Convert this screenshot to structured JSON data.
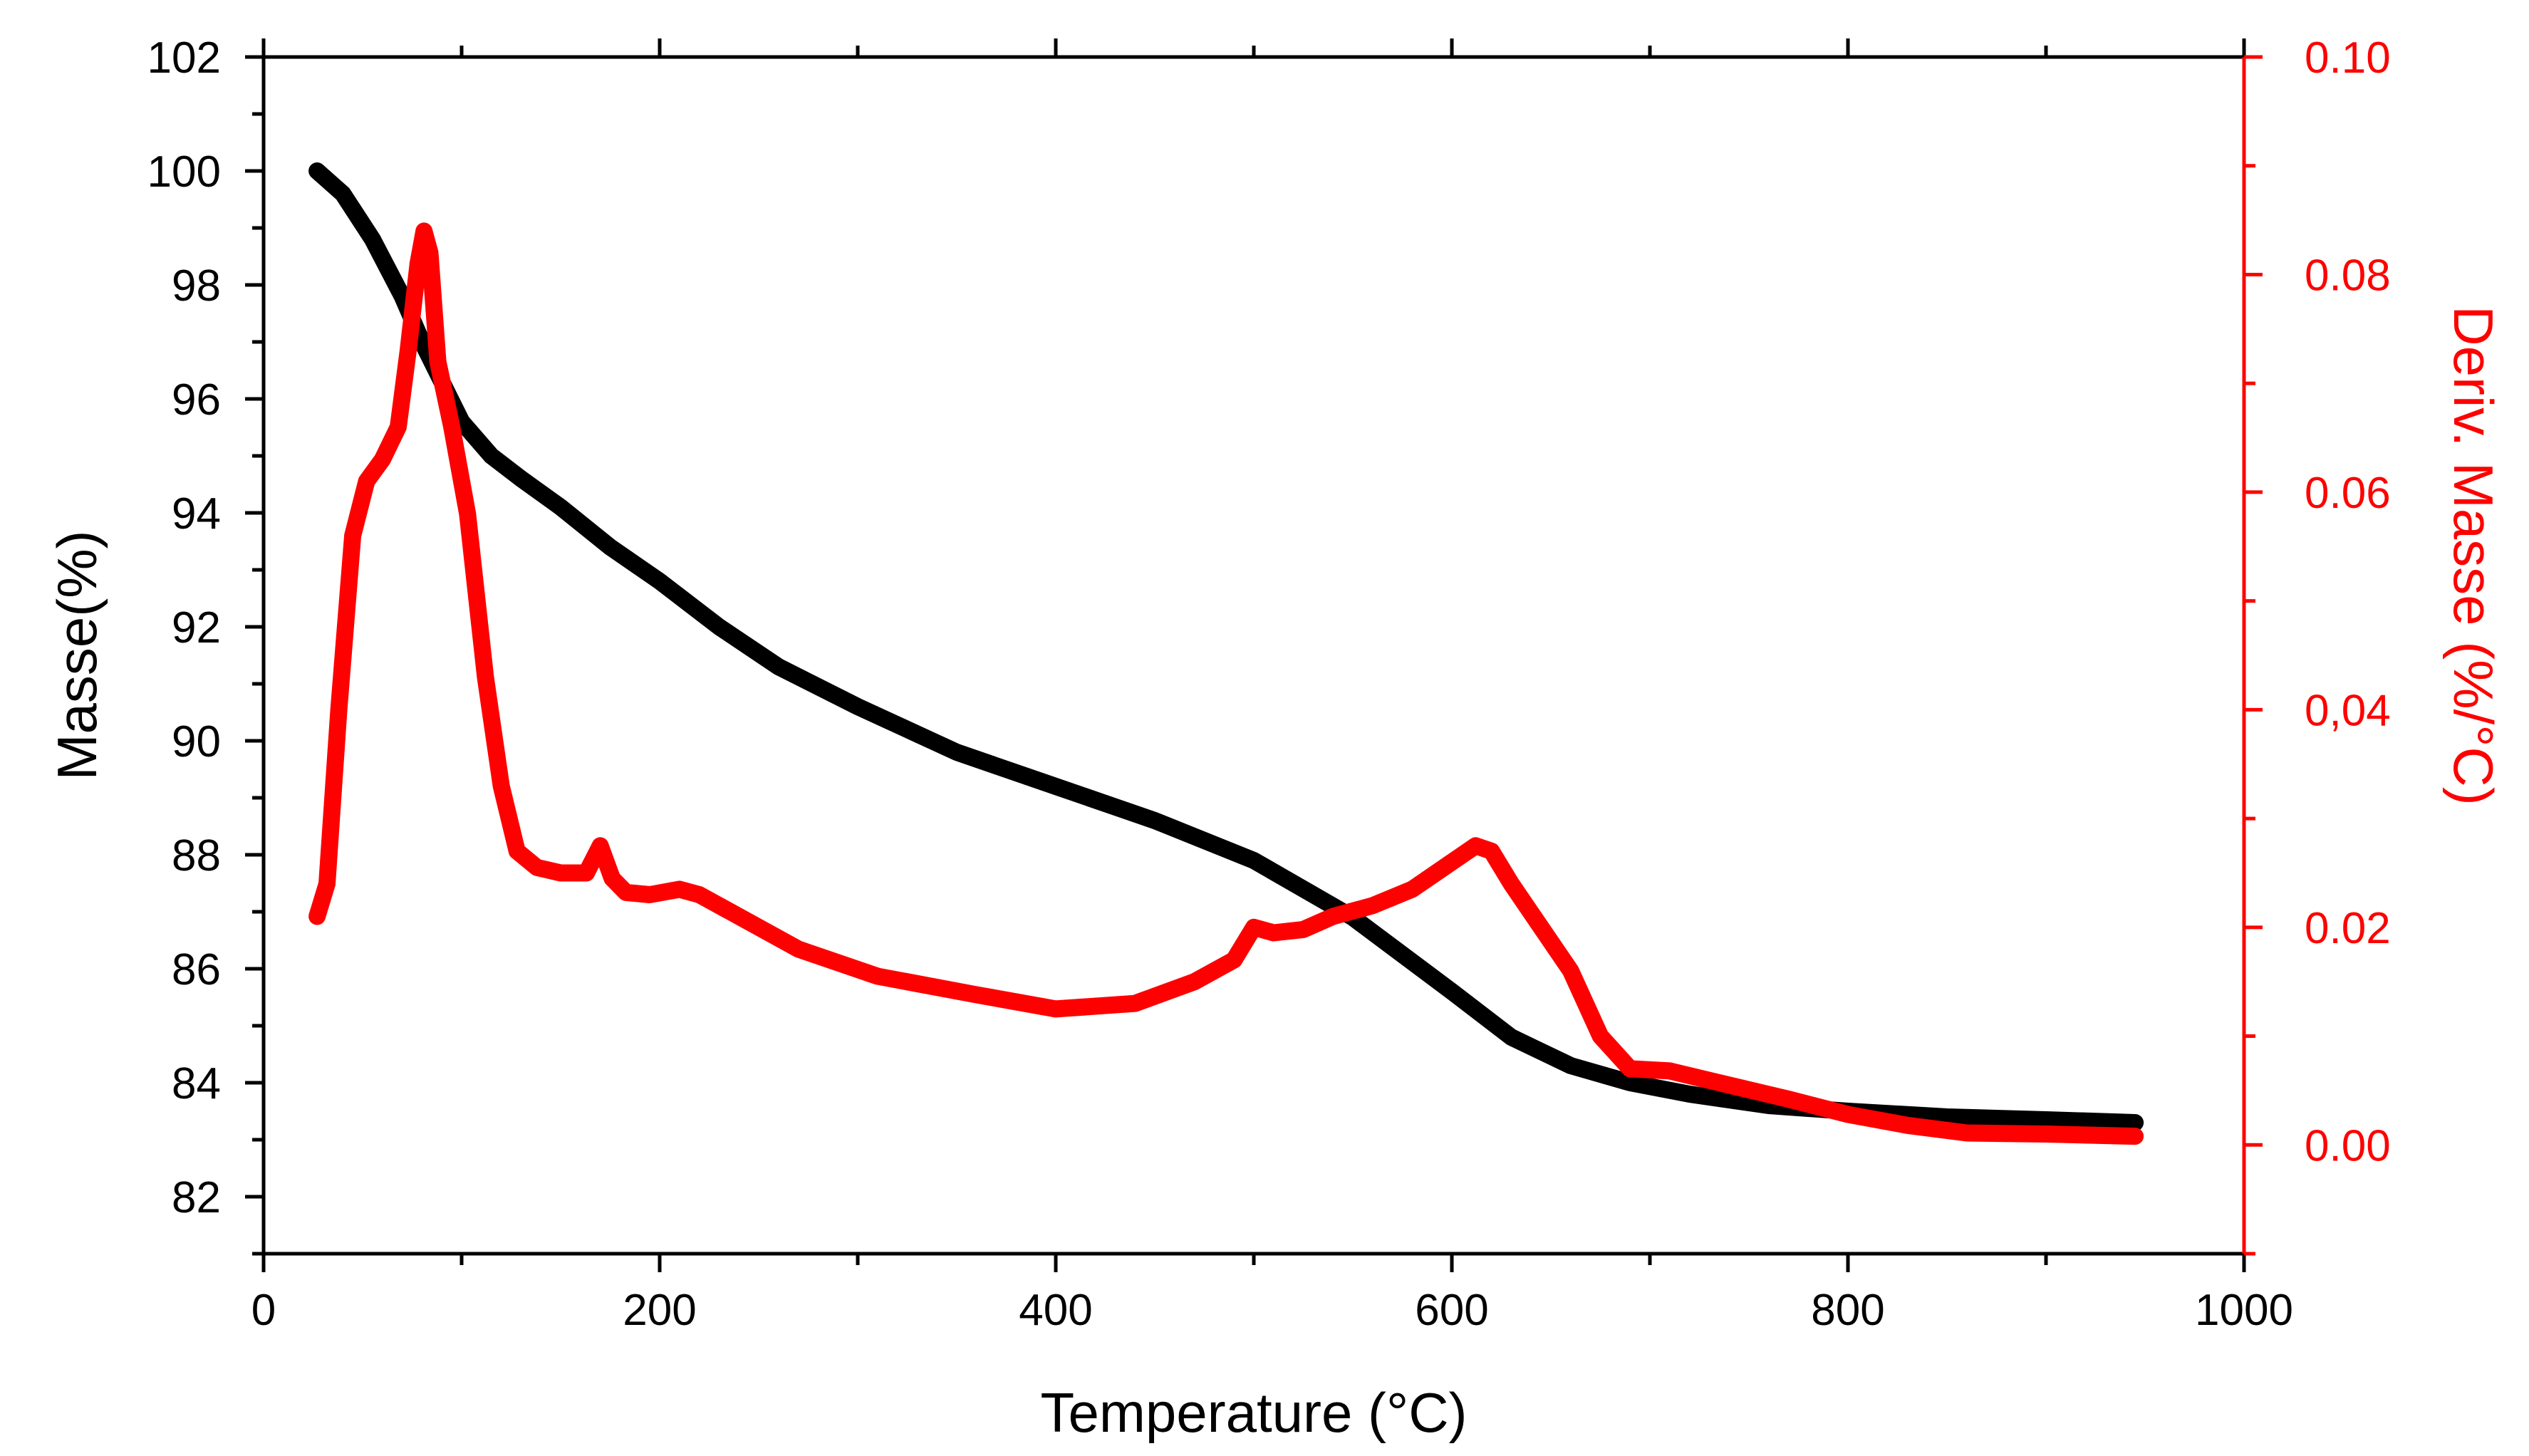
{
  "chart_data": {
    "type": "line",
    "title": "",
    "xlabel": "Temperature (°C)",
    "ylabel": "Masse(%)",
    "y2label": "Deriv. Masse (%/°C)",
    "xlim": [
      0,
      1000
    ],
    "ylim": [
      81,
      102
    ],
    "y2lim": [
      -0.01,
      0.1
    ],
    "x_ticks": [
      {
        "value": 0,
        "label": "0"
      },
      {
        "value": 200,
        "label": "200"
      },
      {
        "value": 400,
        "label": "400"
      },
      {
        "value": 600,
        "label": "600"
      },
      {
        "value": 800,
        "label": "800"
      },
      {
        "value": 1000,
        "label": "1000"
      }
    ],
    "y_ticks": [
      {
        "value": 82,
        "label": "82"
      },
      {
        "value": 84,
        "label": "84"
      },
      {
        "value": 86,
        "label": "86"
      },
      {
        "value": 88,
        "label": "88"
      },
      {
        "value": 90,
        "label": "90"
      },
      {
        "value": 92,
        "label": "92"
      },
      {
        "value": 94,
        "label": "94"
      },
      {
        "value": 96,
        "label": "96"
      },
      {
        "value": 98,
        "label": "98"
      },
      {
        "value": 100,
        "label": "100"
      },
      {
        "value": 102,
        "label": "102"
      }
    ],
    "y2_ticks": [
      {
        "value": 0.0,
        "label": "0.00"
      },
      {
        "value": 0.02,
        "label": "0.02"
      },
      {
        "value": 0.04,
        "label": "0,04"
      },
      {
        "value": 0.06,
        "label": "0.06"
      },
      {
        "value": 0.08,
        "label": "0.08"
      },
      {
        "value": 0.1,
        "label": "0.10"
      }
    ],
    "series": [
      {
        "name": "Masse",
        "axis": "left",
        "color": "#000000",
        "x": [
          27,
          40,
          55,
          70,
          80,
          90,
          100,
          115,
          130,
          150,
          175,
          200,
          230,
          260,
          300,
          350,
          400,
          450,
          500,
          550,
          600,
          630,
          660,
          690,
          720,
          760,
          800,
          850,
          900,
          945
        ],
        "y": [
          100.0,
          99.6,
          98.8,
          97.8,
          97.0,
          96.3,
          95.6,
          95.0,
          94.6,
          94.1,
          93.4,
          92.8,
          92.0,
          91.3,
          90.6,
          89.8,
          89.2,
          88.6,
          87.9,
          86.9,
          85.6,
          84.8,
          84.3,
          84.0,
          83.8,
          83.6,
          83.5,
          83.4,
          83.35,
          83.3
        ]
      },
      {
        "name": "Deriv. Masse",
        "axis": "right",
        "color": "#ff0000",
        "x": [
          27,
          32,
          38,
          45,
          52,
          60,
          68,
          73,
          78,
          81,
          84,
          88,
          95,
          103,
          112,
          120,
          128,
          138,
          150,
          163,
          170,
          176,
          183,
          195,
          210,
          220,
          240,
          270,
          310,
          360,
          400,
          440,
          470,
          490,
          500,
          510,
          525,
          540,
          560,
          580,
          600,
          612,
          620,
          630,
          645,
          660,
          675,
          690,
          710,
          740,
          770,
          800,
          830,
          860,
          900,
          945
        ],
        "y": [
          0.021,
          0.024,
          0.04,
          0.056,
          0.061,
          0.063,
          0.066,
          0.073,
          0.081,
          0.084,
          0.082,
          0.072,
          0.066,
          0.058,
          0.043,
          0.033,
          0.027,
          0.0255,
          0.025,
          0.025,
          0.0275,
          0.0245,
          0.0232,
          0.023,
          0.0235,
          0.023,
          0.021,
          0.018,
          0.0155,
          0.0138,
          0.0125,
          0.013,
          0.015,
          0.017,
          0.02,
          0.0195,
          0.0198,
          0.021,
          0.022,
          0.0235,
          0.026,
          0.0275,
          0.027,
          0.024,
          0.02,
          0.016,
          0.01,
          0.007,
          0.0068,
          0.0055,
          0.0042,
          0.0028,
          0.0018,
          0.0011,
          0.001,
          0.0008
        ]
      }
    ]
  }
}
